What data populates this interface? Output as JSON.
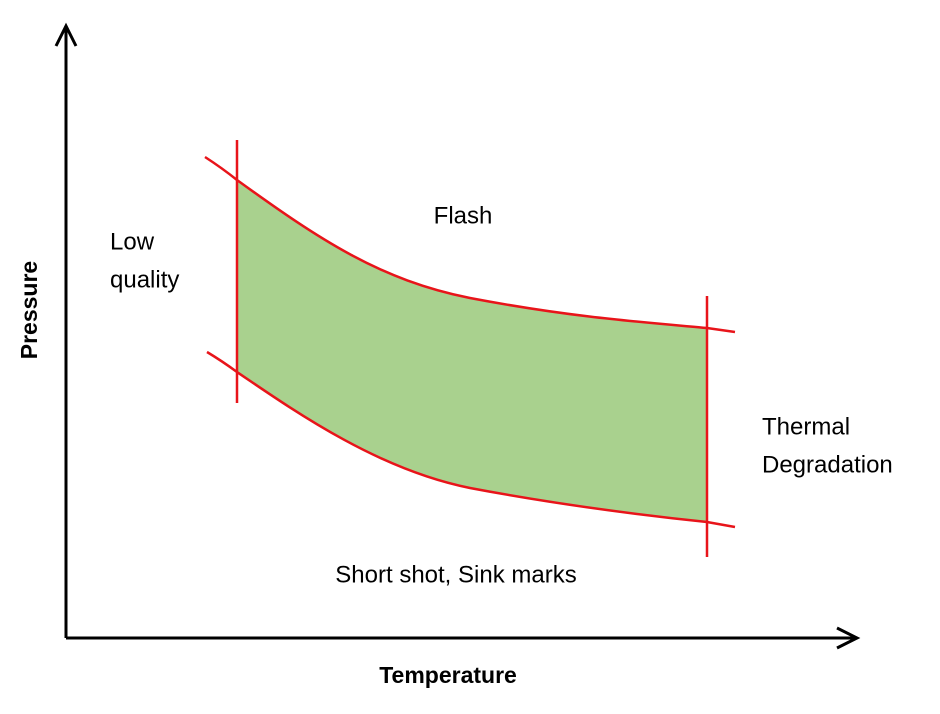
{
  "axes": {
    "x_label": "Temperature",
    "y_label": "Pressure"
  },
  "regions": {
    "top": "Flash",
    "left": [
      "Low",
      "quality"
    ],
    "right": [
      "Thermal",
      "Degradation"
    ],
    "bottom": "Short shot, Sink marks"
  }
}
